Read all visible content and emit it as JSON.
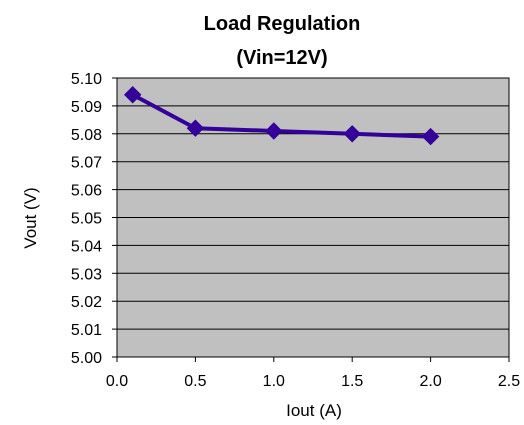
{
  "chart_data": {
    "type": "line",
    "title": "Load Regulation",
    "subtitle": "(Vin=12V)",
    "xlabel": "Iout (A)",
    "ylabel": "Vout (V)",
    "xlim": [
      0.0,
      2.5
    ],
    "ylim": [
      5.0,
      5.1
    ],
    "x_ticks": [
      "0.0",
      "0.5",
      "1.0",
      "1.5",
      "2.0",
      "2.5"
    ],
    "y_ticks": [
      "5.00",
      "5.01",
      "5.02",
      "5.03",
      "5.04",
      "5.05",
      "5.06",
      "5.07",
      "5.08",
      "5.09",
      "5.10"
    ],
    "grid": true,
    "legend": "none",
    "colors": {
      "plot_background": "#c0c0c0",
      "series": "#330099",
      "grid": "#000000"
    },
    "series": [
      {
        "marker": "diamond",
        "x": [
          0.1,
          0.5,
          1.0,
          1.5,
          2.0
        ],
        "y": [
          5.094,
          5.082,
          5.081,
          5.08,
          5.079
        ]
      }
    ]
  }
}
